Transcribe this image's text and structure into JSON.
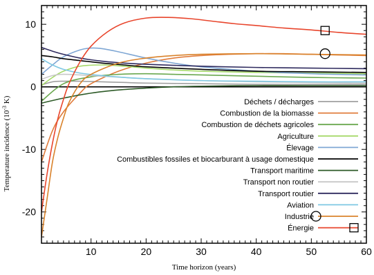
{
  "chart_data": {
    "type": "line",
    "xlabel": "Time horizon (years)",
    "ylabel_main": "Temperature incidence (10",
    "ylabel_exp": "-3",
    "ylabel_unit": " K)",
    "xlim": [
      1,
      60
    ],
    "ylim": [
      -25,
      13
    ],
    "xticks": [
      10,
      20,
      30,
      40,
      50,
      60
    ],
    "yticks": [
      -20,
      -10,
      0,
      10
    ],
    "zero_line": true,
    "legend_position": "bottom-right",
    "series": [
      {
        "name": "Déchets / décharges",
        "color": "#a0a0a0",
        "x": [
          1,
          3,
          5,
          8,
          12,
          16,
          20,
          30,
          40,
          50,
          60
        ],
        "y": [
          0.3,
          0.8,
          0.9,
          0.9,
          0.8,
          0.7,
          0.6,
          0.5,
          0.4,
          0.4,
          0.4
        ]
      },
      {
        "name": "Combustion de la biomasse",
        "color": "#e07b3a",
        "x": [
          1,
          3,
          5,
          8,
          10,
          15,
          20,
          25,
          30,
          35,
          40,
          45,
          50,
          55,
          60
        ],
        "y": [
          -12,
          -7,
          -4,
          -1,
          0.5,
          2.5,
          3.8,
          4.6,
          5.0,
          5.2,
          5.3,
          5.3,
          5.2,
          5.1,
          5.0
        ]
      },
      {
        "name": "Combustion de déchets agricoles",
        "color": "#6aa84f",
        "x": [
          1,
          5,
          10,
          15,
          20,
          25,
          30,
          40,
          50,
          60
        ],
        "y": [
          -2.3,
          0.5,
          1.6,
          2.0,
          2.1,
          2.0,
          1.9,
          1.7,
          1.5,
          1.4
        ]
      },
      {
        "name": "Agriculture",
        "color": "#a6d96a",
        "x": [
          1,
          3,
          5,
          8,
          12,
          16,
          20,
          25,
          30,
          40,
          50,
          60
        ],
        "y": [
          0.2,
          1.5,
          2.5,
          3.3,
          3.5,
          3.3,
          3.0,
          2.7,
          2.5,
          2.3,
          2.2,
          2.1
        ]
      },
      {
        "name": "Élevage",
        "color": "#7fa7d4",
        "x": [
          1,
          3,
          5,
          8,
          10,
          12,
          15,
          20,
          25,
          30,
          40,
          50,
          60
        ],
        "y": [
          2.0,
          3.5,
          4.8,
          5.9,
          6.2,
          6.1,
          5.6,
          4.6,
          3.8,
          3.2,
          2.5,
          2.1,
          1.9
        ]
      },
      {
        "name": "Combustibles fossiles et biocarburant à usage domestique",
        "color": "#000000",
        "x": [
          1,
          3,
          5,
          8,
          12,
          16,
          20,
          30,
          40,
          50,
          60
        ],
        "y": [
          5.0,
          4.8,
          4.5,
          4.2,
          3.8,
          3.5,
          3.2,
          2.8,
          2.5,
          2.4,
          2.3
        ]
      },
      {
        "name": "Transport maritime",
        "color": "#2d5a27",
        "x": [
          1,
          5,
          10,
          15,
          20,
          25,
          30,
          40,
          50,
          60
        ],
        "y": [
          -2.6,
          -1.8,
          -1.0,
          -0.5,
          -0.2,
          0.0,
          0.1,
          0.2,
          0.2,
          0.2
        ]
      },
      {
        "name": "Transport non routier",
        "color": "#c8c8c8",
        "x": [
          1,
          3,
          5,
          8,
          12,
          16,
          20,
          30,
          40,
          50,
          60
        ],
        "y": [
          1.2,
          1.8,
          2.0,
          1.9,
          1.7,
          1.5,
          1.3,
          1.0,
          0.8,
          0.7,
          0.6
        ]
      },
      {
        "name": "Transport routier",
        "color": "#2e2a5e",
        "x": [
          1,
          3,
          5,
          8,
          12,
          16,
          20,
          30,
          40,
          50,
          60
        ],
        "y": [
          6.3,
          5.7,
          5.2,
          4.6,
          4.1,
          3.8,
          3.6,
          3.3,
          3.1,
          3.0,
          2.9
        ]
      },
      {
        "name": "Aviation",
        "color": "#7ec8e3",
        "x": [
          1,
          3,
          5,
          8,
          12,
          16,
          20,
          30,
          40,
          50,
          60
        ],
        "y": [
          4.5,
          3.5,
          2.8,
          2.2,
          1.8,
          1.5,
          1.3,
          1.0,
          0.9,
          0.8,
          0.8
        ]
      },
      {
        "name": "Industrie",
        "color": "#d9822b",
        "x": [
          1,
          2,
          3,
          4,
          5,
          6,
          8,
          10,
          15,
          20,
          25,
          30,
          40,
          50,
          60
        ],
        "y": [
          -24,
          -18,
          -12,
          -8,
          -5,
          -2.5,
          0.5,
          2.0,
          3.8,
          4.6,
          5.0,
          5.2,
          5.3,
          5.2,
          5.1
        ]
      },
      {
        "name": "Énergie",
        "color": "#e8452c",
        "x": [
          1,
          2,
          3,
          4,
          5,
          6,
          8,
          10,
          13,
          16,
          20,
          24,
          28,
          32,
          36,
          40,
          45,
          50,
          55,
          60
        ],
        "y": [
          -20,
          -14,
          -9,
          -5,
          -2,
          0.5,
          4.0,
          6.5,
          8.8,
          10.2,
          11.0,
          11.1,
          10.9,
          10.5,
          10.1,
          9.8,
          9.4,
          9.1,
          8.7,
          8.4
        ]
      }
    ],
    "markers": [
      {
        "shape": "square",
        "series": "Énergie",
        "x": 52.5,
        "y": 9.0
      },
      {
        "shape": "circle",
        "series": "Industrie",
        "x": 52.5,
        "y": 5.3
      }
    ]
  }
}
